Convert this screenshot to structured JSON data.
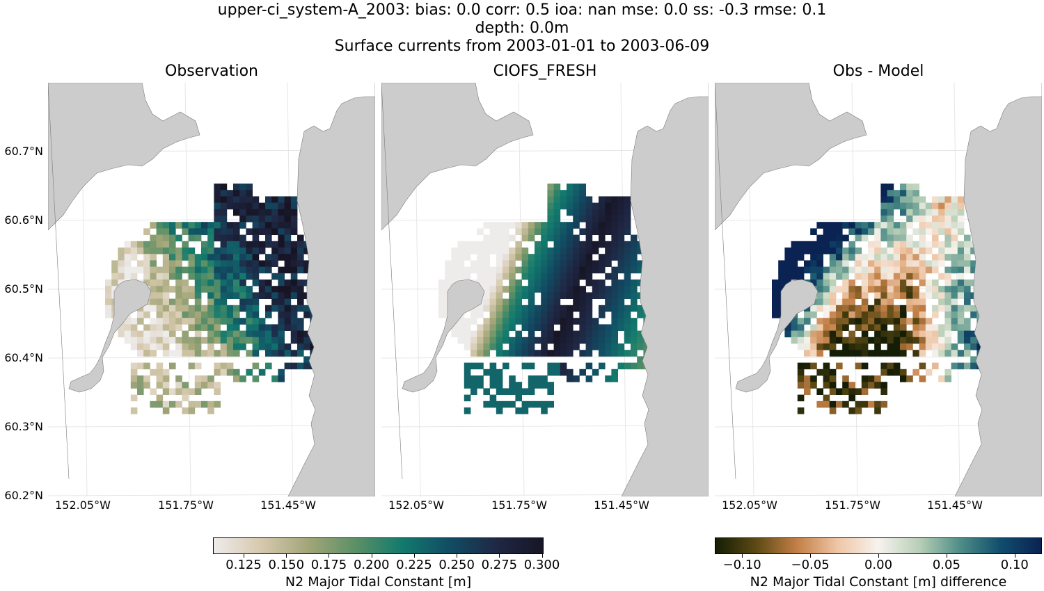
{
  "header": {
    "line1": "upper-ci_system-A_2003: bias: 0.0  corr: 0.5  ioa: nan  mse: 0.0  ss: -0.3  rmse: 0.1",
    "line2": "depth: 0.0m",
    "line3": "Surface currents from 2003-01-01 to 2003-06-09"
  },
  "panels": [
    {
      "title": "Observation"
    },
    {
      "title": "CIOFS_FRESH"
    },
    {
      "title": "Obs - Model"
    }
  ],
  "axes": {
    "y_ticks": [
      "60.7°N",
      "60.6°N",
      "60.5°N",
      "60.4°N",
      "60.3°N",
      "60.2°N"
    ],
    "x_ticks": [
      "152.05°W",
      "151.75°W",
      "151.45°W"
    ]
  },
  "colors": {
    "land": "#cccccc",
    "grid": "#e6e6e6"
  },
  "colorbar_main": {
    "label": "N2 Major Tidal Constant [m]",
    "ticks": [
      "0.125",
      "0.150",
      "0.175",
      "0.200",
      "0.225",
      "0.250",
      "0.275",
      "0.300"
    ],
    "range": [
      0.107,
      0.301
    ],
    "colormap": "cmocean-rain",
    "stops": [
      "#eeebeb",
      "#d6c9ae",
      "#a3a679",
      "#5d9066",
      "#137a6d",
      "#114d64",
      "#1f2845",
      "#171525"
    ]
  },
  "colorbar_diff": {
    "label": "N2 Major Tidal Constant [m] difference",
    "ticks": [
      "−0.10",
      "−0.05",
      "0.00",
      "0.05",
      "0.10"
    ],
    "range": [
      -0.12,
      0.12
    ],
    "colormap": "cmocean-tarn-like",
    "stops": [
      "#141d05",
      "#5c4a14",
      "#c37f46",
      "#efc6a6",
      "#f6f3ee",
      "#b9cfb7",
      "#4f8e88",
      "#114d6c",
      "#0a2352"
    ]
  },
  "chart_data": {
    "type": "heatmap",
    "title": "upper-ci_system-A_2003: bias: 0.0  corr: 0.5  ioa: nan  mse: 0.0  ss: -0.3  rmse: 0.1",
    "xlim": [
      -152.15,
      -151.2
    ],
    "ylim": [
      60.2,
      60.8
    ],
    "variable": "N2 Major Tidal Constant [m]",
    "stats": {
      "bias": 0.0,
      "corr": 0.5,
      "ioa": "nan",
      "mse": 0.0,
      "ss": -0.3,
      "rmse": 0.1
    },
    "panels": [
      "Observation",
      "CIOFS_FRESH",
      "Obs - Model"
    ]
  }
}
